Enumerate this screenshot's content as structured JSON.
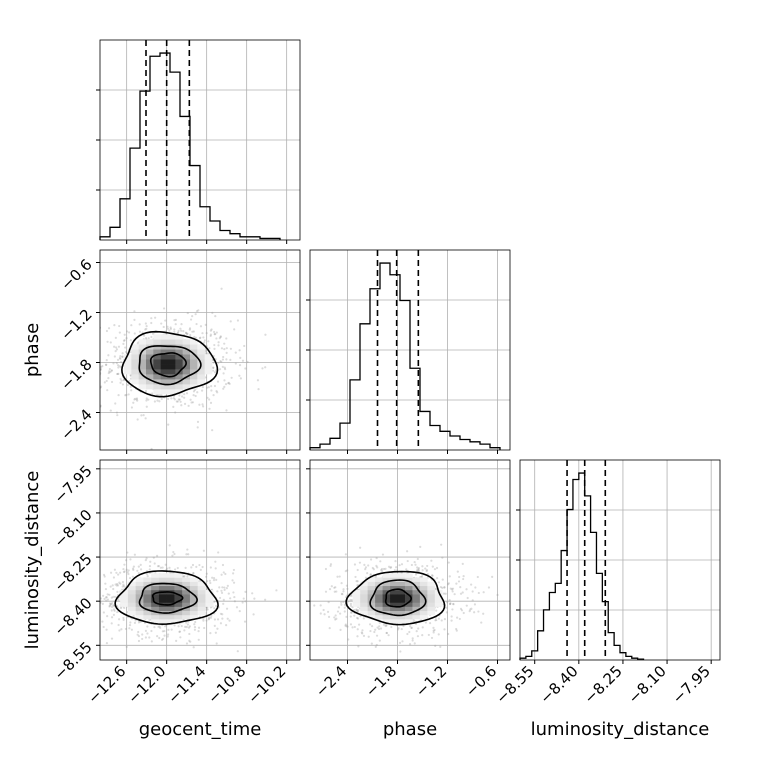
{
  "chart_data": {
    "type": "corner",
    "parameters": [
      {
        "name": "geocent_time",
        "label": "geocent_time",
        "range": [
          -13.0,
          -10.0
        ],
        "ticks": [
          -12.6,
          -12.0,
          -11.4,
          -10.8,
          -10.2
        ],
        "tick_labels": [
          "−12.6",
          "−12.0",
          "−11.4",
          "−10.8",
          "−10.2"
        ],
        "quantiles": [
          -12.31,
          -12.0,
          -11.66
        ],
        "histogram": {
          "edges": [
            -13.0,
            -12.85,
            -12.7,
            -12.55,
            -12.4,
            -12.25,
            -12.1,
            -11.95,
            -11.8,
            -11.65,
            -11.5,
            -11.35,
            -11.2,
            -11.05,
            -10.9,
            -10.75,
            -10.6,
            -10.45,
            -10.3
          ],
          "counts": [
            2,
            8,
            26,
            58,
            94,
            116,
            118,
            106,
            78,
            47,
            21,
            12,
            6,
            4,
            2,
            2,
            1,
            1
          ]
        }
      },
      {
        "name": "phase",
        "label": "phase",
        "range": [
          -2.85,
          -0.45
        ],
        "ticks": [
          -2.4,
          -1.8,
          -1.2,
          -0.6
        ],
        "tick_labels": [
          "−2.4",
          "−1.8",
          "−1.2",
          "−0.6"
        ],
        "quantiles": [
          -2.04,
          -1.81,
          -1.55
        ],
        "histogram": {
          "edges": [
            -2.85,
            -2.73,
            -2.61,
            -2.49,
            -2.37,
            -2.25,
            -2.13,
            -2.01,
            -1.89,
            -1.77,
            -1.65,
            -1.53,
            -1.41,
            -1.29,
            -1.17,
            -1.05,
            -0.93,
            -0.81,
            -0.69,
            -0.57
          ],
          "counts": [
            2,
            5,
            10,
            23,
            60,
            108,
            138,
            160,
            150,
            128,
            70,
            33,
            21,
            16,
            12,
            9,
            7,
            5,
            2
          ]
        }
      },
      {
        "name": "luminosity_distance",
        "label": "luminosity_distance",
        "range": [
          -8.6,
          -7.92
        ],
        "ticks": [
          -8.55,
          -8.4,
          -8.25,
          -8.1,
          -7.95
        ],
        "tick_labels": [
          "−8.55",
          "−8.40",
          "−8.25",
          "−8.10",
          "−7.95"
        ],
        "quantiles": [
          -8.44,
          -8.38,
          -8.31
        ],
        "histogram": {
          "edges": [
            -8.6,
            -8.58,
            -8.56,
            -8.54,
            -8.52,
            -8.5,
            -8.48,
            -8.46,
            -8.44,
            -8.42,
            -8.4,
            -8.38,
            -8.36,
            -8.34,
            -8.32,
            -8.3,
            -8.28,
            -8.26,
            -8.24,
            -8.22,
            -8.2,
            -8.18
          ],
          "counts": [
            2,
            4,
            10,
            32,
            55,
            74,
            84,
            120,
            165,
            198,
            205,
            180,
            140,
            95,
            64,
            30,
            16,
            8,
            4,
            2,
            1
          ]
        }
      }
    ],
    "joint_2d": [
      {
        "x": "geocent_time",
        "y": "phase",
        "center": [
          -11.98,
          -1.82
        ],
        "contour_radii": [
          [
            0.26,
            0.14
          ],
          [
            0.46,
            0.23
          ],
          [
            0.7,
            0.38
          ]
        ]
      },
      {
        "x": "geocent_time",
        "y": "luminosity_distance",
        "center": [
          -12.0,
          -8.39
        ],
        "contour_radii": [
          [
            0.22,
            0.022
          ],
          [
            0.42,
            0.05
          ],
          [
            0.74,
            0.09
          ]
        ]
      },
      {
        "x": "phase",
        "y": "luminosity_distance",
        "center": [
          -1.8,
          -8.39
        ],
        "contour_radii": [
          [
            0.15,
            0.03
          ],
          [
            0.32,
            0.06
          ],
          [
            0.57,
            0.09
          ]
        ]
      }
    ],
    "grid": true,
    "quantile_line_style": "dashed"
  }
}
